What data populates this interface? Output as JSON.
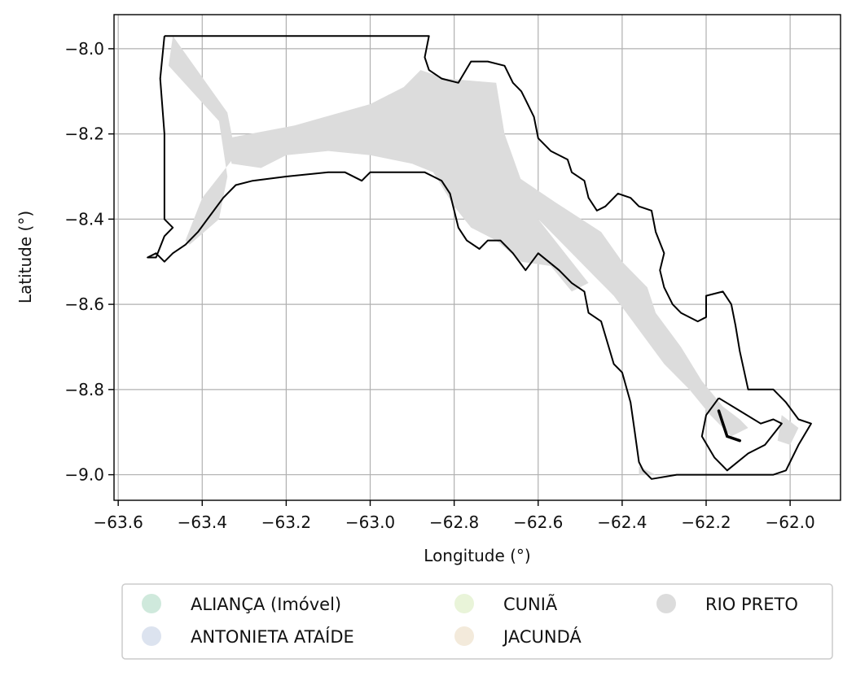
{
  "chart_data": {
    "type": "map",
    "xlabel": "Longitude (°)",
    "ylabel": "Latitude (°)",
    "xlim": [
      -63.61,
      -61.88
    ],
    "ylim": [
      -9.06,
      -7.92
    ],
    "x_ticks": [
      -63.6,
      -63.4,
      -63.2,
      -63.0,
      -62.8,
      -62.6,
      -62.4,
      -62.2,
      -62.0
    ],
    "y_ticks": [
      -8.0,
      -8.2,
      -8.4,
      -8.6,
      -8.8,
      -9.0
    ],
    "x_tick_labels": [
      "−63.6",
      "−63.4",
      "−63.2",
      "−63.0",
      "−62.8",
      "−62.6",
      "−62.4",
      "−62.2",
      "−62.0"
    ],
    "y_tick_labels": [
      "−8.0",
      "−8.2",
      "−8.4",
      "−8.6",
      "−8.8",
      "−9.0"
    ],
    "grid": true,
    "legend_position": "below",
    "legend": [
      {
        "name": "ALIANÇA (Imóvel)",
        "color": "#cfe9dc"
      },
      {
        "name": "ANTONIETA ATAÍDE",
        "color": "#dce3ef"
      },
      {
        "name": "CUNIÃ",
        "color": "#e9f4d9"
      },
      {
        "name": "JACUNDÁ",
        "color": "#f3eadb"
      },
      {
        "name": "RIO PRETO",
        "color": "#dcdcdc"
      }
    ],
    "boundary": [
      [
        -63.49,
        -7.97
      ],
      [
        -62.86,
        -7.97
      ],
      [
        -62.87,
        -8.02
      ],
      [
        -62.86,
        -8.05
      ],
      [
        -62.83,
        -8.07
      ],
      [
        -62.79,
        -8.08
      ],
      [
        -62.76,
        -8.03
      ],
      [
        -62.72,
        -8.03
      ],
      [
        -62.68,
        -8.04
      ],
      [
        -62.66,
        -8.08
      ],
      [
        -62.64,
        -8.1
      ],
      [
        -62.63,
        -8.12
      ],
      [
        -62.61,
        -8.16
      ],
      [
        -62.6,
        -8.21
      ],
      [
        -62.57,
        -8.24
      ],
      [
        -62.53,
        -8.26
      ],
      [
        -62.52,
        -8.29
      ],
      [
        -62.49,
        -8.31
      ],
      [
        -62.48,
        -8.35
      ],
      [
        -62.46,
        -8.38
      ],
      [
        -62.44,
        -8.37
      ],
      [
        -62.41,
        -8.34
      ],
      [
        -62.38,
        -8.35
      ],
      [
        -62.36,
        -8.37
      ],
      [
        -62.33,
        -8.38
      ],
      [
        -62.32,
        -8.43
      ],
      [
        -62.3,
        -8.48
      ],
      [
        -62.31,
        -8.52
      ],
      [
        -62.3,
        -8.56
      ],
      [
        -62.28,
        -8.6
      ],
      [
        -62.26,
        -8.62
      ],
      [
        -62.22,
        -8.64
      ],
      [
        -62.2,
        -8.63
      ],
      [
        -62.2,
        -8.58
      ],
      [
        -62.16,
        -8.57
      ],
      [
        -62.14,
        -8.6
      ],
      [
        -62.13,
        -8.65
      ],
      [
        -62.12,
        -8.71
      ],
      [
        -62.1,
        -8.8
      ],
      [
        -62.08,
        -8.8
      ],
      [
        -62.04,
        -8.8
      ],
      [
        -62.01,
        -8.83
      ],
      [
        -61.98,
        -8.87
      ],
      [
        -61.95,
        -8.88
      ],
      [
        -61.98,
        -8.93
      ],
      [
        -62.01,
        -8.99
      ],
      [
        -62.04,
        -9.0
      ],
      [
        -62.07,
        -9.0
      ],
      [
        -62.1,
        -9.0
      ],
      [
        -62.15,
        -9.0
      ],
      [
        -62.2,
        -9.0
      ],
      [
        -62.27,
        -9.0
      ],
      [
        -62.33,
        -9.01
      ],
      [
        -62.35,
        -8.99
      ],
      [
        -62.36,
        -8.97
      ],
      [
        -62.37,
        -8.9
      ],
      [
        -62.38,
        -8.83
      ],
      [
        -62.4,
        -8.76
      ],
      [
        -62.42,
        -8.74
      ],
      [
        -62.45,
        -8.64
      ],
      [
        -62.48,
        -8.62
      ],
      [
        -62.49,
        -8.57
      ],
      [
        -62.52,
        -8.55
      ],
      [
        -62.55,
        -8.52
      ],
      [
        -62.6,
        -8.48
      ],
      [
        -62.63,
        -8.52
      ],
      [
        -62.66,
        -8.48
      ],
      [
        -62.69,
        -8.45
      ],
      [
        -62.72,
        -8.45
      ],
      [
        -62.74,
        -8.47
      ],
      [
        -62.77,
        -8.45
      ],
      [
        -62.79,
        -8.42
      ],
      [
        -62.81,
        -8.34
      ],
      [
        -62.83,
        -8.31
      ],
      [
        -62.85,
        -8.3
      ],
      [
        -62.87,
        -8.29
      ],
      [
        -62.9,
        -8.29
      ],
      [
        -63.0,
        -8.29
      ],
      [
        -63.02,
        -8.31
      ],
      [
        -63.06,
        -8.29
      ],
      [
        -63.1,
        -8.29
      ],
      [
        -63.2,
        -8.3
      ],
      [
        -63.28,
        -8.31
      ],
      [
        -63.32,
        -8.32
      ],
      [
        -63.35,
        -8.35
      ],
      [
        -63.38,
        -8.39
      ],
      [
        -63.41,
        -8.43
      ],
      [
        -63.44,
        -8.46
      ],
      [
        -63.47,
        -8.48
      ],
      [
        -63.49,
        -8.5
      ],
      [
        -63.51,
        -8.48
      ],
      [
        -63.53,
        -8.49
      ],
      [
        -63.51,
        -8.49
      ],
      [
        -63.49,
        -8.44
      ],
      [
        -63.47,
        -8.42
      ],
      [
        -63.49,
        -8.4
      ],
      [
        -63.49,
        -8.2
      ],
      [
        -63.5,
        -8.07
      ],
      [
        -63.49,
        -7.97
      ]
    ],
    "inner_boundary": [
      [
        -62.17,
        -8.82
      ],
      [
        -62.12,
        -8.85
      ],
      [
        -62.07,
        -8.88
      ],
      [
        -62.04,
        -8.87
      ],
      [
        -62.02,
        -8.88
      ],
      [
        -62.06,
        -8.93
      ],
      [
        -62.1,
        -8.95
      ],
      [
        -62.15,
        -8.99
      ],
      [
        -62.18,
        -8.96
      ],
      [
        -62.21,
        -8.91
      ],
      [
        -62.2,
        -8.86
      ],
      [
        -62.17,
        -8.82
      ]
    ],
    "river_segment": [
      [
        -62.17,
        -8.85
      ],
      [
        -62.16,
        -8.88
      ],
      [
        -62.15,
        -8.91
      ],
      [
        -62.12,
        -8.92
      ]
    ],
    "shaded_polygons": [
      [
        [
          -63.47,
          -7.97
        ],
        [
          -63.34,
          -8.15
        ],
        [
          -63.32,
          -8.25
        ],
        [
          -63.4,
          -8.35
        ],
        [
          -63.44,
          -8.45
        ],
        [
          -63.43,
          -8.46
        ],
        [
          -63.36,
          -8.4
        ],
        [
          -63.34,
          -8.3
        ],
        [
          -63.36,
          -8.17
        ],
        [
          -63.48,
          -8.04
        ]
      ],
      [
        [
          -63.34,
          -8.21
        ],
        [
          -63.18,
          -8.18
        ],
        [
          -63.0,
          -8.13
        ],
        [
          -62.92,
          -8.09
        ],
        [
          -62.88,
          -8.05
        ],
        [
          -62.82,
          -8.07
        ],
        [
          -62.7,
          -8.08
        ],
        [
          -62.68,
          -8.2
        ],
        [
          -62.64,
          -8.31
        ],
        [
          -62.6,
          -8.4
        ],
        [
          -62.52,
          -8.5
        ],
        [
          -62.48,
          -8.55
        ],
        [
          -62.52,
          -8.57
        ],
        [
          -62.57,
          -8.51
        ],
        [
          -62.64,
          -8.5
        ],
        [
          -62.7,
          -8.45
        ],
        [
          -62.76,
          -8.42
        ],
        [
          -62.8,
          -8.37
        ],
        [
          -62.85,
          -8.29
        ],
        [
          -62.9,
          -8.27
        ],
        [
          -63.0,
          -8.25
        ],
        [
          -63.1,
          -8.24
        ],
        [
          -63.2,
          -8.25
        ],
        [
          -63.26,
          -8.28
        ],
        [
          -63.33,
          -8.27
        ]
      ],
      [
        [
          -62.68,
          -8.28
        ],
        [
          -62.56,
          -8.36
        ],
        [
          -62.45,
          -8.43
        ],
        [
          -62.4,
          -8.5
        ],
        [
          -62.34,
          -8.56
        ],
        [
          -62.32,
          -8.62
        ],
        [
          -62.26,
          -8.7
        ],
        [
          -62.21,
          -8.78
        ],
        [
          -62.16,
          -8.84
        ],
        [
          -62.12,
          -8.87
        ],
        [
          -62.1,
          -8.89
        ],
        [
          -62.14,
          -8.91
        ],
        [
          -62.19,
          -8.86
        ],
        [
          -62.24,
          -8.8
        ],
        [
          -62.3,
          -8.74
        ],
        [
          -62.36,
          -8.66
        ],
        [
          -62.42,
          -8.58
        ],
        [
          -62.46,
          -8.54
        ],
        [
          -62.52,
          -8.48
        ],
        [
          -62.56,
          -8.44
        ],
        [
          -62.62,
          -8.38
        ],
        [
          -62.66,
          -8.33
        ]
      ],
      [
        [
          -62.02,
          -8.86
        ],
        [
          -61.98,
          -8.89
        ],
        [
          -62.0,
          -8.93
        ],
        [
          -62.03,
          -8.92
        ]
      ],
      [
        [
          -62.36,
          -8.98
        ],
        [
          -62.32,
          -9.0
        ],
        [
          -62.36,
          -9.0
        ]
      ]
    ]
  }
}
